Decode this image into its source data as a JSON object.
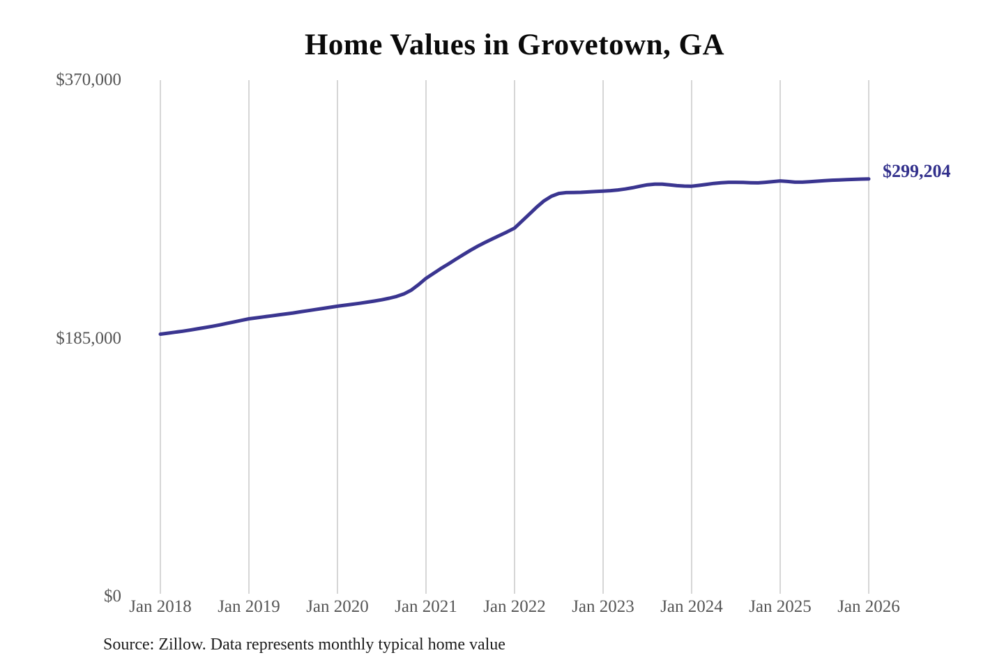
{
  "chart_data": {
    "type": "line",
    "title": "Home Values in Grovetown, GA",
    "source_note": "Source: Zillow. Data represents monthly typical home value",
    "end_label": "$299,204",
    "end_value": 299204,
    "x_ticks": [
      "Jan 2018",
      "Jan 2019",
      "Jan 2020",
      "Jan 2021",
      "Jan 2022",
      "Jan 2023",
      "Jan 2024",
      "Jan 2025",
      "Jan 2026"
    ],
    "y_ticks": [
      {
        "label": "$0",
        "value": 0
      },
      {
        "label": "$185,000",
        "value": 185000
      },
      {
        "label": "$370,000",
        "value": 370000
      }
    ],
    "ylim": [
      0,
      370000
    ],
    "grid": "vertical-only",
    "legend": "none",
    "series": [
      {
        "name": "Monthly typical home value",
        "start_month": "2018-01",
        "end_month": "2026-01",
        "frequency": "monthly",
        "values": [
          188000,
          188700,
          189400,
          190100,
          190900,
          191800,
          192700,
          193600,
          194600,
          195700,
          196800,
          197900,
          199000,
          199700,
          200400,
          201100,
          201800,
          202500,
          203200,
          204000,
          204800,
          205600,
          206400,
          207200,
          208000,
          208700,
          209400,
          210100,
          210900,
          211700,
          212600,
          213700,
          215000,
          216800,
          219500,
          223500,
          228000,
          231500,
          235000,
          238200,
          241500,
          244800,
          248000,
          251000,
          253700,
          256300,
          258800,
          261300,
          264000,
          269000,
          274000,
          279000,
          283500,
          286800,
          288800,
          289400,
          289500,
          289600,
          289900,
          290200,
          290500,
          290800,
          291300,
          292000,
          292900,
          294000,
          295000,
          295500,
          295500,
          295000,
          294400,
          294100,
          294000,
          294600,
          295300,
          296000,
          296500,
          296800,
          296800,
          296700,
          296500,
          296400,
          296800,
          297300,
          297800,
          297400,
          296900,
          296900,
          297200,
          297600,
          298000,
          298300,
          298500,
          298700,
          298900,
          299100,
          299204
        ]
      }
    ],
    "colors": {
      "line": "#3a3590",
      "annotation": "#32308c",
      "grid": "#cccccc",
      "tick_label": "#545454",
      "title": "#0a0a0a",
      "source": "#1b1b1b",
      "background": "#ffffff"
    }
  }
}
